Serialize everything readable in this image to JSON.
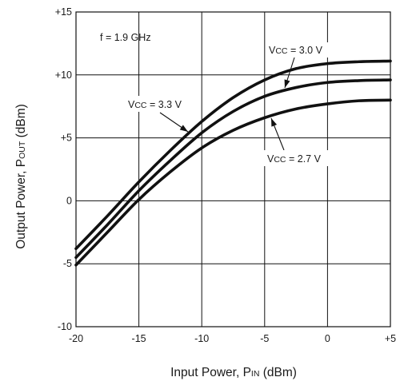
{
  "chart_data": {
    "type": "line",
    "title": "",
    "xlabel": {
      "prefix": "Input Power, P",
      "sub": "IN",
      "suffix": " (dBm)"
    },
    "ylabel": {
      "prefix": "Output Power, P",
      "sub": "OUT",
      "suffix": " (dBm)"
    },
    "xlim": [
      -20,
      5
    ],
    "ylim": [
      -10,
      15
    ],
    "x_ticks": [
      {
        "value": -20,
        "label": "-20"
      },
      {
        "value": -15,
        "label": "-15"
      },
      {
        "value": -10,
        "label": "-10"
      },
      {
        "value": -5,
        "label": "-5"
      },
      {
        "value": 0,
        "label": "0"
      },
      {
        "value": 5,
        "label": "+5"
      }
    ],
    "y_ticks": [
      {
        "value": -10,
        "label": "-10"
      },
      {
        "value": -5,
        "label": "-5"
      },
      {
        "value": 0,
        "label": "0"
      },
      {
        "value": 5,
        "label": "+5"
      },
      {
        "value": 10,
        "label": "+10"
      },
      {
        "value": 15,
        "label": "+15"
      }
    ],
    "grid": true,
    "condition_note": "f = 1.9 GHz",
    "series": [
      {
        "name": "VCC = 3.3 V",
        "label": {
          "prefix": "V",
          "sub": "CC",
          "suffix": " = 3.3 V"
        },
        "x": [
          -20,
          -17.5,
          -15,
          -12.5,
          -10,
          -7.5,
          -5,
          -2.5,
          0,
          2.5,
          5
        ],
        "y": [
          -3.8,
          -1.2,
          1.5,
          4.0,
          6.3,
          8.2,
          9.6,
          10.5,
          10.9,
          11.05,
          11.1
        ]
      },
      {
        "name": "VCC = 3.0 V",
        "label": {
          "prefix": "V",
          "sub": "CC",
          "suffix": " = 3.0 V"
        },
        "x": [
          -20,
          -17.5,
          -15,
          -12.5,
          -10,
          -7.5,
          -5,
          -2.5,
          0,
          2.5,
          5
        ],
        "y": [
          -4.5,
          -1.9,
          0.8,
          3.2,
          5.4,
          7.1,
          8.3,
          9.0,
          9.4,
          9.55,
          9.6
        ]
      },
      {
        "name": "VCC = 2.7 V",
        "label": {
          "prefix": "V",
          "sub": "CC",
          "suffix": " = 2.7 V"
        },
        "x": [
          -20,
          -17.5,
          -15,
          -12.5,
          -10,
          -7.5,
          -5,
          -2.5,
          0,
          2.5,
          5
        ],
        "y": [
          -5.1,
          -2.5,
          0.1,
          2.3,
          4.2,
          5.6,
          6.6,
          7.3,
          7.7,
          7.95,
          8.0
        ]
      }
    ]
  }
}
